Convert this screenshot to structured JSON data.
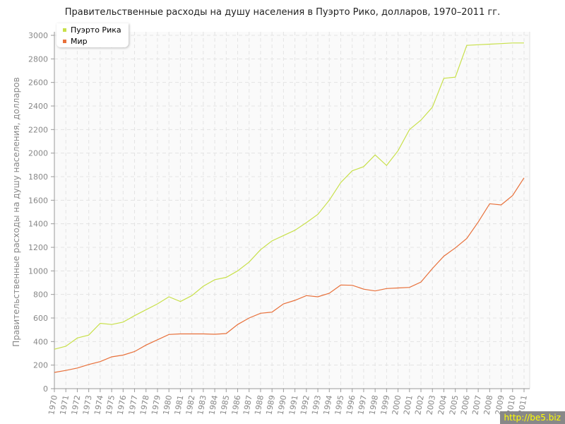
{
  "chart_data": {
    "type": "line",
    "title": "Правительственные расходы на душу населения в Пуэрто Рико, долларов, 1970–2011 гг.",
    "ylabel": "Правительственные расходы на душу населения, долларов",
    "xlabel": "",
    "ylim": [
      0,
      3000
    ],
    "yticks": [
      0,
      200,
      400,
      600,
      800,
      1000,
      1200,
      1400,
      1600,
      1800,
      2000,
      2200,
      2400,
      2600,
      2800,
      3000
    ],
    "grid": true,
    "legend_position": "top-left",
    "x": [
      1970,
      1971,
      1972,
      1973,
      1974,
      1975,
      1976,
      1977,
      1978,
      1979,
      1980,
      1981,
      1982,
      1983,
      1984,
      1985,
      1986,
      1987,
      1988,
      1989,
      1990,
      1991,
      1992,
      1993,
      1994,
      1995,
      1996,
      1997,
      1998,
      1999,
      2000,
      2001,
      2002,
      2003,
      2004,
      2005,
      2006,
      2007,
      2008,
      2009,
      2010,
      2011
    ],
    "series": [
      {
        "name": "Пуэрто Рика",
        "color": "#c8e04a",
        "values": [
          335,
          360,
          430,
          455,
          555,
          545,
          565,
          620,
          670,
          720,
          780,
          740,
          790,
          870,
          925,
          945,
          1000,
          1075,
          1180,
          1255,
          1300,
          1345,
          1410,
          1480,
          1600,
          1750,
          1850,
          1885,
          1985,
          1895,
          2020,
          2200,
          2280,
          2390,
          2635,
          2645,
          2915,
          2920,
          2925,
          2930,
          2935,
          2935
        ]
      },
      {
        "name": "Мир",
        "color": "#e8703a",
        "values": [
          138,
          155,
          175,
          205,
          230,
          270,
          285,
          315,
          370,
          415,
          460,
          465,
          465,
          465,
          462,
          468,
          545,
          600,
          640,
          650,
          720,
          750,
          790,
          780,
          810,
          880,
          878,
          845,
          830,
          850,
          855,
          860,
          905,
          1020,
          1125,
          1195,
          1275,
          1415,
          1570,
          1560,
          1640,
          1790
        ]
      }
    ]
  },
  "watermark": "http://be5.biz"
}
